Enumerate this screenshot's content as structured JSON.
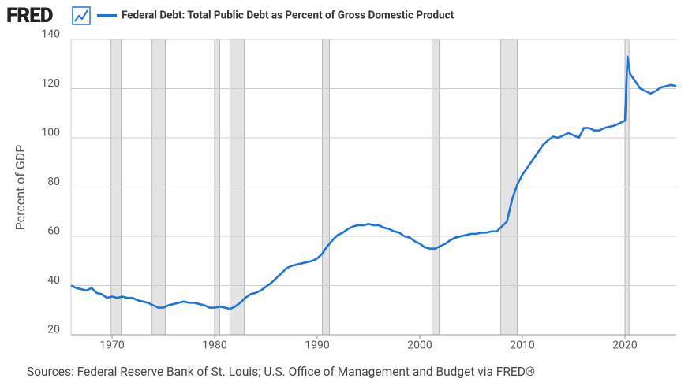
{
  "chart_data": {
    "type": "line",
    "logo": "FRED",
    "y_label": "Percent of GDP",
    "source": "Sources: Federal Reserve Bank of St. Louis; U.S. Office of Management and Budget via FRED®",
    "x": [
      1966,
      1966.5,
      1967,
      1967.5,
      1968,
      1968.5,
      1969,
      1969.5,
      1970,
      1970.5,
      1971,
      1971.5,
      1972,
      1972.5,
      1973,
      1973.5,
      1974,
      1974.5,
      1975,
      1975.5,
      1976,
      1976.5,
      1977,
      1977.5,
      1978,
      1978.5,
      1979,
      1979.5,
      1980,
      1980.5,
      1981,
      1981.5,
      1982,
      1982.5,
      1983,
      1983.5,
      1984,
      1984.5,
      1985,
      1985.5,
      1986,
      1986.5,
      1987,
      1987.5,
      1988,
      1988.5,
      1989,
      1989.5,
      1990,
      1990.5,
      1991,
      1991.5,
      1992,
      1992.5,
      1993,
      1993.5,
      1994,
      1994.5,
      1995,
      1995.5,
      1996,
      1996.5,
      1997,
      1997.5,
      1998,
      1998.5,
      1999,
      1999.5,
      2000,
      2000.5,
      2001,
      2001.5,
      2002,
      2002.5,
      2003,
      2003.5,
      2004,
      2004.5,
      2005,
      2005.5,
      2006,
      2006.5,
      2007,
      2007.5,
      2008,
      2008.5,
      2009,
      2009.5,
      2010,
      2010.5,
      2011,
      2011.5,
      2012,
      2012.5,
      2013,
      2013.5,
      2014,
      2014.5,
      2015,
      2015.5,
      2016,
      2016.5,
      2017,
      2017.5,
      2018,
      2018.5,
      2019,
      2019.5,
      2020,
      2020.25,
      2020.5,
      2021,
      2021.5,
      2022,
      2022.5,
      2023,
      2023.5,
      2024,
      2024.5,
      2025
    ],
    "series": [
      {
        "name": "Federal Debt: Total Public Debt as Percent of Gross Domestic Product",
        "color": "#1a73e0",
        "values": [
          40,
          39,
          38.5,
          38,
          39,
          37,
          36.5,
          35,
          35.5,
          35,
          35.5,
          35,
          35,
          34,
          33.5,
          33,
          32,
          31,
          31,
          32,
          32.5,
          33,
          33.5,
          33,
          33,
          32.5,
          32,
          31,
          31,
          31.5,
          31,
          30.5,
          31.5,
          33,
          35,
          36.5,
          37,
          38,
          39.5,
          41,
          43,
          45,
          47,
          48,
          48.5,
          49,
          49.5,
          50,
          51,
          53,
          56,
          58.5,
          60.5,
          61.5,
          63,
          64,
          64.5,
          64.5,
          65,
          64.5,
          64.5,
          63.5,
          63,
          62,
          61.5,
          60,
          59.5,
          58,
          57,
          55.5,
          55,
          55,
          56,
          57,
          58.5,
          59.5,
          60,
          60.5,
          61,
          61,
          61.5,
          61.5,
          62,
          62,
          64,
          66,
          75,
          81,
          85,
          88,
          91,
          94,
          97,
          99,
          100.5,
          100,
          101,
          102,
          101,
          100,
          104,
          104,
          103,
          103,
          104,
          104.5,
          105,
          106,
          107,
          133,
          126,
          123,
          120,
          119,
          118,
          119,
          120.5,
          121,
          121.5,
          121
        ]
      }
    ],
    "recessions": [
      [
        1969.9,
        1970.9
      ],
      [
        1973.9,
        1975.2
      ],
      [
        1980.0,
        1980.5
      ],
      [
        1981.5,
        1982.9
      ],
      [
        1990.5,
        1991.2
      ],
      [
        2001.2,
        2001.9
      ],
      [
        2007.9,
        2009.5
      ],
      [
        2020.0,
        2020.4
      ]
    ],
    "xlim": [
      1966,
      2025
    ],
    "xticks": [
      1970,
      1980,
      1990,
      2000,
      2010,
      2020
    ],
    "ylim": [
      20,
      140
    ],
    "yticks": [
      20,
      40,
      60,
      80,
      100,
      120,
      140
    ],
    "grid": true
  }
}
